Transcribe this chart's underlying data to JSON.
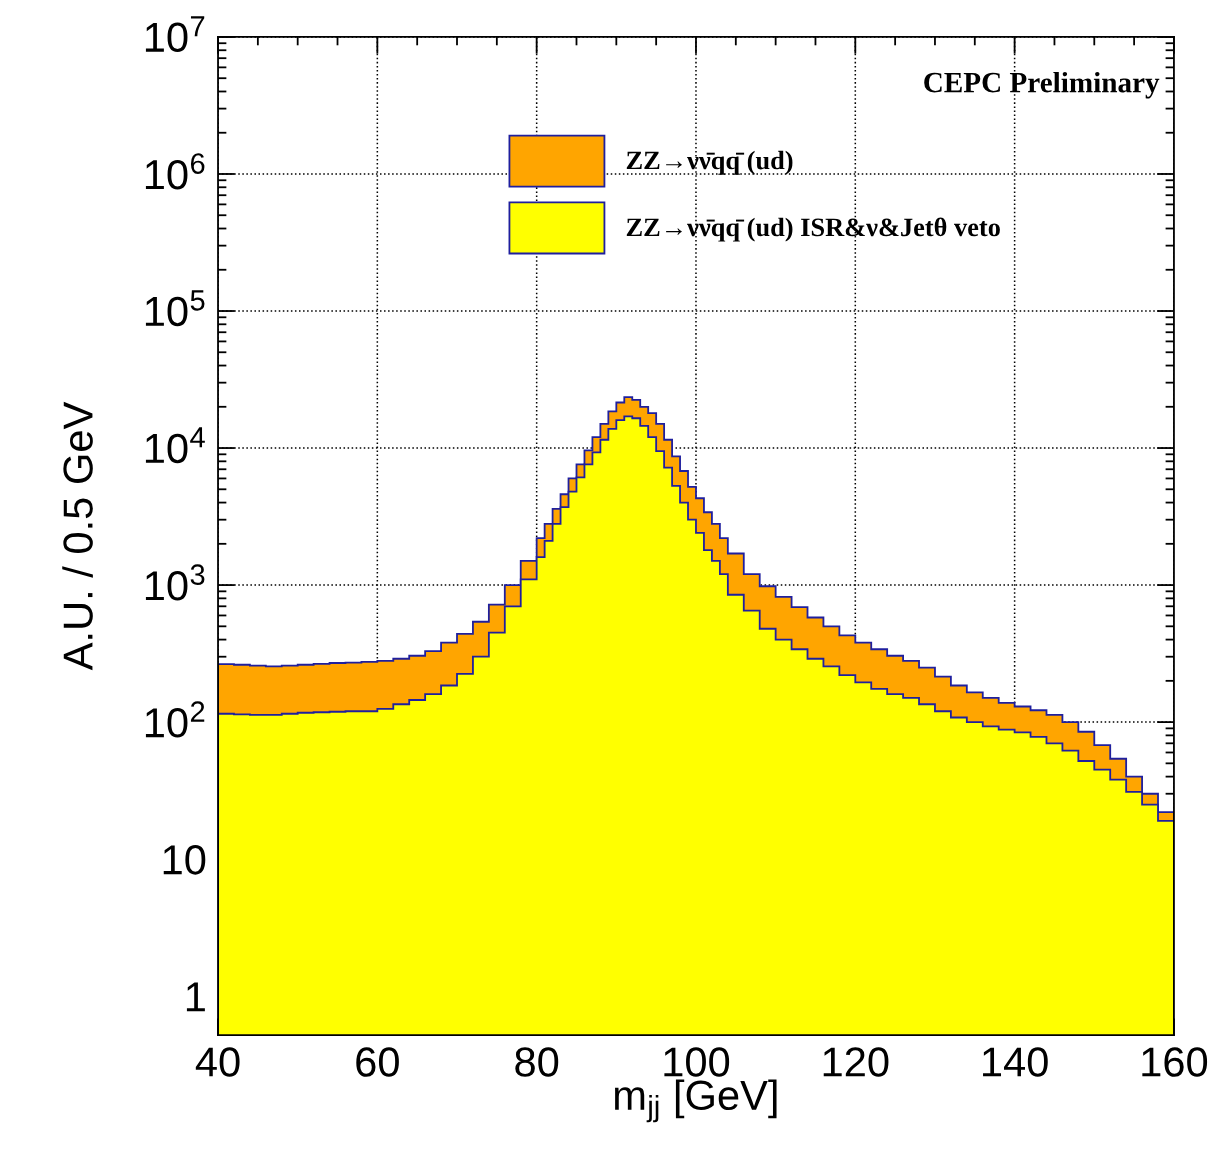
{
  "chart_data": {
    "type": "histogram",
    "xlabel": "m$_{jj}$ [GeV]",
    "ylabel": "A.U. / 0.5 GeV",
    "annotations": [
      "CEPC Preliminary"
    ],
    "bins": [
      40,
      42,
      44,
      46,
      48,
      50,
      52,
      54,
      56,
      58,
      60,
      62,
      64,
      66,
      68,
      70,
      72,
      74,
      76,
      78,
      80,
      81,
      82,
      83,
      84,
      85,
      86,
      87,
      88,
      89,
      90,
      91,
      92,
      93,
      94,
      95,
      96,
      97,
      98,
      99,
      100,
      101,
      102,
      103,
      104,
      106,
      108,
      110,
      112,
      114,
      116,
      118,
      120,
      122,
      124,
      126,
      128,
      130,
      132,
      134,
      136,
      138,
      140,
      142,
      144,
      146,
      148,
      150,
      152,
      154,
      156,
      158,
      160
    ],
    "series": [
      {
        "name": "ZZ→νν̄qq̄ (ud)",
        "color": "#ffa500",
        "values": [
          265,
          262,
          258,
          255,
          258,
          262,
          266,
          270,
          272,
          275,
          280,
          290,
          305,
          330,
          380,
          440,
          540,
          720,
          1000,
          1500,
          2200,
          2800,
          3600,
          4600,
          6000,
          7600,
          9600,
          12000,
          15000,
          18500,
          21500,
          23500,
          22500,
          20000,
          18000,
          15000,
          11500,
          8700,
          6800,
          5200,
          4300,
          3400,
          2800,
          2200,
          1700,
          1200,
          980,
          820,
          690,
          580,
          500,
          430,
          380,
          340,
          305,
          280,
          250,
          215,
          185,
          165,
          150,
          138,
          130,
          122,
          113,
          100,
          85,
          68,
          54,
          40,
          30,
          22
        ]
      },
      {
        "name": "ZZ→νν̄qq̄ (ud) ISR&ν&Jetθ veto",
        "color": "#ffff00",
        "values": [
          115,
          114,
          113,
          113,
          115,
          117,
          118,
          119,
          120,
          120,
          125,
          135,
          145,
          160,
          185,
          225,
          300,
          450,
          700,
          1100,
          1600,
          2100,
          2800,
          3700,
          4800,
          6100,
          7600,
          9300,
          11500,
          13800,
          16000,
          17000,
          16500,
          14500,
          12000,
          9500,
          7200,
          5300,
          4000,
          3000,
          2400,
          1800,
          1500,
          1200,
          850,
          650,
          480,
          400,
          340,
          290,
          255,
          220,
          195,
          175,
          160,
          150,
          135,
          120,
          108,
          100,
          93,
          88,
          84,
          78,
          70,
          62,
          52,
          45,
          38,
          31,
          25,
          19
        ]
      }
    ],
    "xlim": [
      40,
      160
    ],
    "xticks": [
      40,
      60,
      80,
      100,
      120,
      140,
      160
    ],
    "log": true,
    "ylim": [
      0.52,
      10000000
    ],
    "yticks": [
      1,
      10,
      {
        "value": 100,
        "label": "10$^{2}$"
      },
      {
        "value": 1000,
        "label": "10$^{3}$"
      },
      {
        "value": 10000,
        "label": "10$^{4}$"
      },
      {
        "value": 100000,
        "label": "10$^{5}$"
      },
      {
        "value": 1000000,
        "label": "10$^{6}$"
      },
      {
        "value": 10000000,
        "label": "10$^{7}$"
      }
    ],
    "grid": true,
    "legend": "top"
  }
}
